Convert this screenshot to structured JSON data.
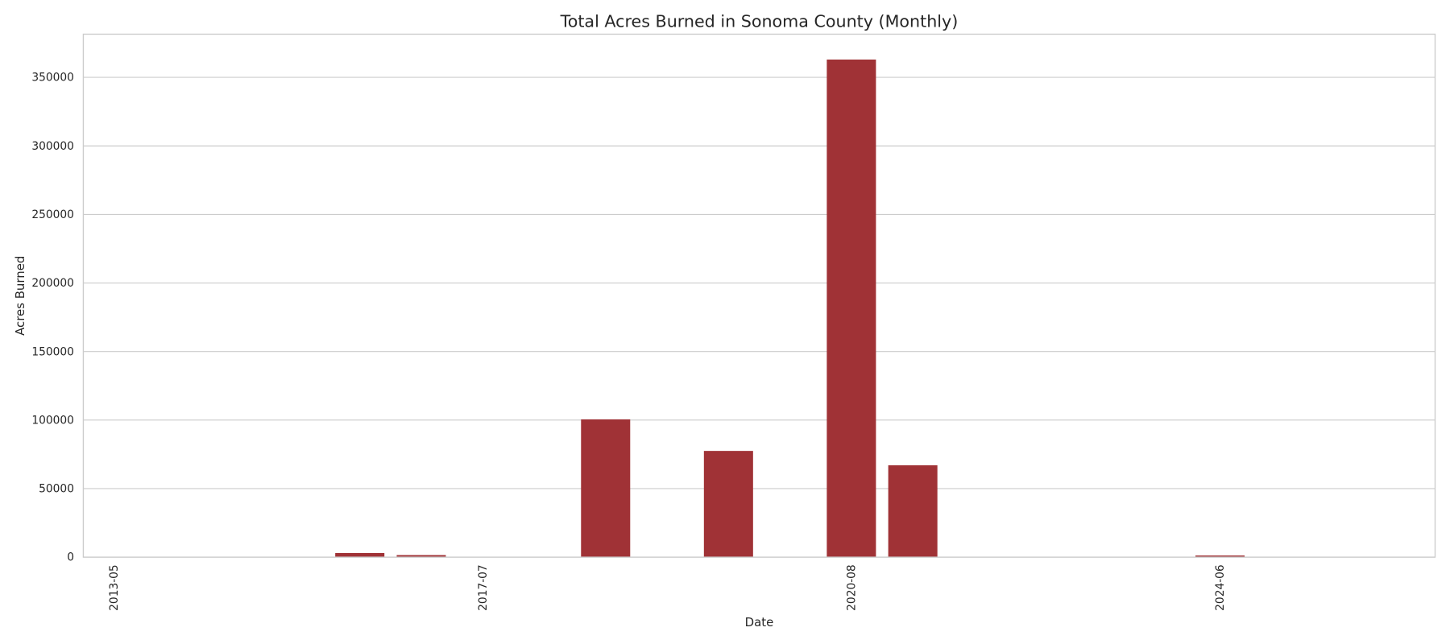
{
  "chart_data": {
    "type": "bar",
    "title": "Total Acres Burned in Sonoma County (Monthly)",
    "x_label": "Date",
    "y_label": "Acres Burned",
    "categories": [
      "2013-05",
      null,
      null,
      null,
      null,
      null,
      "2017-07",
      null,
      null,
      null,
      null,
      null,
      "2020-08",
      null,
      null,
      null,
      null,
      null,
      "2024-06",
      null,
      null,
      null
    ],
    "values": [
      100,
      100,
      100,
      100,
      3000,
      1500,
      100,
      100,
      100500,
      100,
      77500,
      100,
      363000,
      67000,
      100,
      100,
      100,
      100,
      1200,
      100,
      100,
      100
    ],
    "color": "#a03236",
    "ylim": [
      0,
      381500
    ],
    "yticks": [
      0,
      50000,
      100000,
      150000,
      200000,
      250000,
      300000,
      350000
    ],
    "grid": true
  }
}
